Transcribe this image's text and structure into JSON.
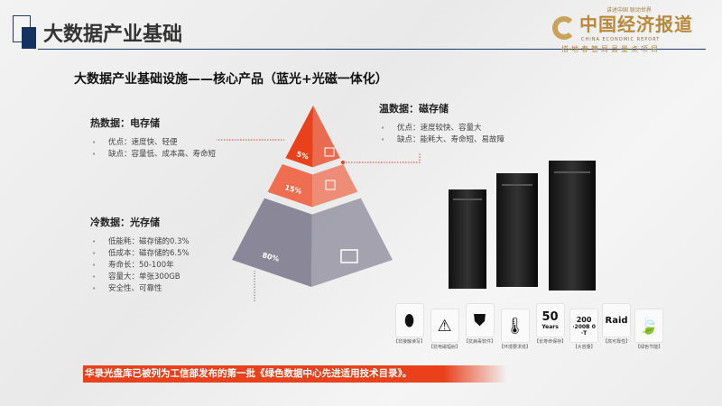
{
  "header": {
    "title": "大数据产业基础"
  },
  "logo": {
    "slogan_top": "讲述中国 联动世界",
    "name": "中国经济报道",
    "english": "CHINA ECONOMIC REPORT",
    "slogan_bottom": "搭地春管局县量点项目"
  },
  "subtitle": "大数据产业基础设施——核心产品（蓝光+光磁一体化）",
  "hot": {
    "title": "热数据：电存储",
    "items": [
      "优点：速度快、轻便",
      "缺点：容量低、成本高、寿命短"
    ]
  },
  "warm": {
    "title": "温数据：磁存储",
    "items": [
      "优点：速度较快、容量大",
      "缺点：能耗大、寿命短、易故障"
    ]
  },
  "cold": {
    "title": "冷数据：光存储",
    "items": [
      "低能耗：磁存储的0.3%",
      "低成本：磁存储的6.5%",
      "寿命长：50-100年",
      "容量大：单张300GB",
      "安全性、可靠性"
    ]
  },
  "pyramid": {
    "tiers": [
      {
        "label": "5%",
        "icon": "card-icon",
        "color": "#e8411c"
      },
      {
        "label": "15%",
        "icon": "chip-icon",
        "color": "#ef6d50"
      },
      {
        "label": "80%",
        "icon": "disc-drive-icon",
        "color": "#8a8898"
      }
    ]
  },
  "features": [
    {
      "icon": "contactless-icon",
      "glyph": "⬮",
      "label": "【非接触读写】"
    },
    {
      "icon": "radiation-icon",
      "glyph": "⚠",
      "label": "【抗电磁辐射】"
    },
    {
      "icon": "shield-icon",
      "glyph": "⛊",
      "label": "【抗病毒软件】"
    },
    {
      "icon": "thermometer-icon",
      "glyph": "🌡",
      "label": "【环境要求低】"
    },
    {
      "icon": "fifty-years-icon",
      "glyph": "50",
      "label": "【长寿命保存】"
    },
    {
      "icon": "capacity-icon",
      "glyph": "200",
      "label": "【大容量】"
    },
    {
      "icon": "raid-icon",
      "glyph": "Raid",
      "label": "【高可靠性】"
    },
    {
      "icon": "leaf-icon",
      "glyph": "🍃",
      "label": "【绿色节能】"
    }
  ],
  "feature_glyph_extra": {
    "years": "Years",
    "capacity": "·200B 0 ·T"
  },
  "banner": "华录光盘库已被列为工信部发布的第一批《绿色数据中心先进适用技术目录》。"
}
